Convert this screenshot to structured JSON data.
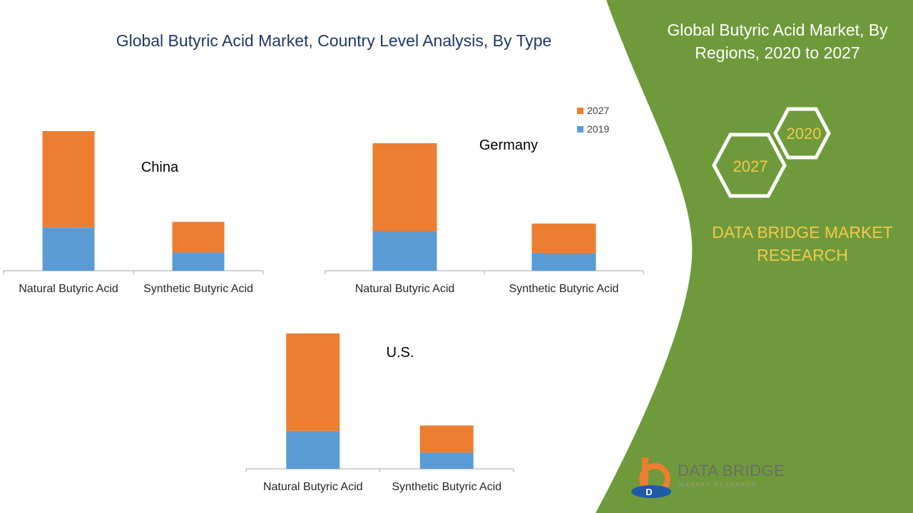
{
  "title": "Global Butyric Acid Market, Country Level Analysis, By Type",
  "side_panel": {
    "title": "Global Butyric Acid Market, By Regions, 2020 to 2027",
    "hex_labels": [
      "2020",
      "2027"
    ],
    "brand": "DATA BRIDGE MARKET RESEARCH",
    "logo_text": "DATA BRIDGE",
    "logo_subtext": "MARKET RESEARCH",
    "colors": {
      "panel": "#6f9a3b",
      "hex_text": "#f2c94c",
      "hex_stroke": "#ffffff"
    }
  },
  "legend": [
    {
      "label": "2027",
      "color": "#ed7d31"
    },
    {
      "label": "2019",
      "color": "#5b9bd5"
    }
  ],
  "chart_data": [
    {
      "type": "bar",
      "stacked": true,
      "label": "China",
      "categories": [
        "Natural Butyric Acid",
        "Synthetic Butyric Acid"
      ],
      "series": [
        {
          "name": "2019",
          "values": [
            31,
            13
          ]
        },
        {
          "name": "2027",
          "values": [
            69,
            22
          ]
        }
      ],
      "ylim": [
        0,
        100
      ]
    },
    {
      "type": "bar",
      "stacked": true,
      "label": "Germany",
      "categories": [
        "Natural Butyric Acid",
        "Synthetic Butyric Acid"
      ],
      "series": [
        {
          "name": "2019",
          "values": [
            31,
            14
          ]
        },
        {
          "name": "2027",
          "values": [
            69,
            23
          ]
        }
      ],
      "ylim": [
        0,
        100
      ]
    },
    {
      "type": "bar",
      "stacked": true,
      "label": "U.S.",
      "categories": [
        "Natural Butyric Acid",
        "Synthetic Butyric Acid"
      ],
      "series": [
        {
          "name": "2019",
          "values": [
            28,
            12
          ]
        },
        {
          "name": "2027",
          "values": [
            72,
            20
          ]
        }
      ],
      "ylim": [
        0,
        100
      ]
    }
  ]
}
